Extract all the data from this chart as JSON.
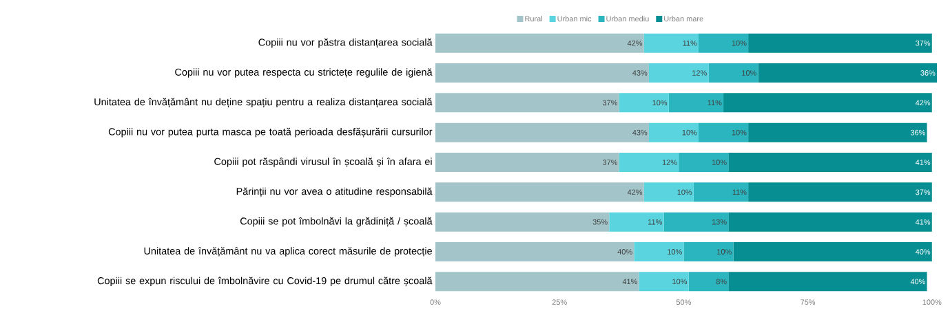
{
  "chart_data": {
    "type": "bar",
    "orientation": "horizontal",
    "stacked": true,
    "legend": "top",
    "categories": [
      "Copiii nu vor păstra distanțarea socială",
      "Copiii nu vor putea respecta cu strictețe regulile de igienă",
      "Unitatea de învățământ nu deține spațiu pentru a realiza distanțarea socială",
      "Copiii nu vor putea purta masca pe toată perioada desfășurării cursurilor",
      "Copiii pot răspândi virusul în școală și în afara ei",
      "Părinții nu vor avea o atitudine responsabilă",
      "Copiii se pot îmbolnăvi la grădiniță / școală",
      "Unitatea de învățământ nu va aplica corect măsurile de protecție",
      "Copiii se expun riscului de îmbolnăvire cu Covid-19 pe drumul către școală"
    ],
    "series": [
      {
        "name": "Rural",
        "color": "#a3c5c9",
        "values": [
          42,
          43,
          37,
          43,
          37,
          42,
          35,
          40,
          41
        ],
        "value_labels": [
          "42%",
          "43%",
          "37%",
          "43%",
          "37%",
          "42%",
          "35%",
          "40%",
          "41%"
        ]
      },
      {
        "name": "Urban mic",
        "color": "#5ad5df",
        "values": [
          11,
          12,
          10,
          10,
          12,
          10,
          11,
          10,
          10
        ],
        "value_labels": [
          "11%",
          "12%",
          "10%",
          "10%",
          "12%",
          "10%",
          "11%",
          "10%",
          "10%"
        ]
      },
      {
        "name": "Urban mediu",
        "color": "#2bb5bf",
        "values": [
          10,
          10,
          11,
          10,
          10,
          11,
          13,
          10,
          8
        ],
        "value_labels": [
          "10%",
          "10%",
          "11%",
          "10%",
          "10%",
          "11%",
          "13%",
          "10%",
          "8%"
        ]
      },
      {
        "name": "Urban mare",
        "color": "#078e92",
        "values": [
          37,
          36,
          42,
          36,
          41,
          37,
          41,
          40,
          40
        ],
        "value_labels": [
          "37%",
          "36%",
          "42%",
          "36%",
          "41%",
          "37%",
          "41%",
          "40%",
          "40%"
        ]
      }
    ],
    "xlim": [
      0,
      101
    ],
    "xticks": [
      {
        "value": 0,
        "label": "0%"
      },
      {
        "value": 25,
        "label": "25%"
      },
      {
        "value": 50,
        "label": "50%"
      },
      {
        "value": 75,
        "label": "75%"
      },
      {
        "value": 100,
        "label": "100%"
      }
    ]
  }
}
